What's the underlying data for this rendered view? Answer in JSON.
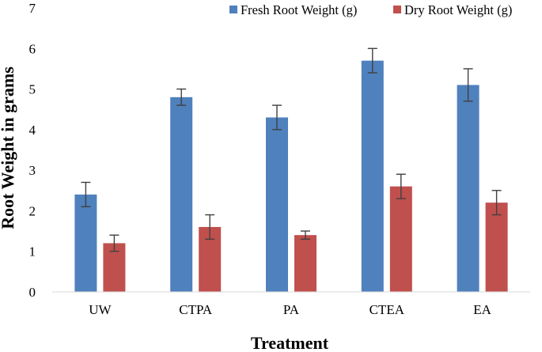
{
  "chart_data": {
    "type": "bar",
    "title": "",
    "xlabel": "Treatment",
    "ylabel": "Root Weight in grams",
    "ylim": [
      0,
      7
    ],
    "ytick_step": 1,
    "grid": false,
    "legend_position": "top-right",
    "categories": [
      "UW",
      "CTPA",
      "PA",
      "CTEA",
      "EA"
    ],
    "series": [
      {
        "name": "Fresh Root Weight (g)",
        "color": "#4F81BD",
        "values": [
          2.4,
          4.8,
          4.3,
          5.7,
          5.1
        ],
        "errors": [
          0.3,
          0.2,
          0.3,
          0.3,
          0.4
        ]
      },
      {
        "name": "Dry Root Weight (g)",
        "color": "#C0504D",
        "values": [
          1.2,
          1.6,
          1.4,
          2.6,
          2.2
        ],
        "errors": [
          0.2,
          0.3,
          0.1,
          0.3,
          0.3
        ]
      }
    ]
  }
}
